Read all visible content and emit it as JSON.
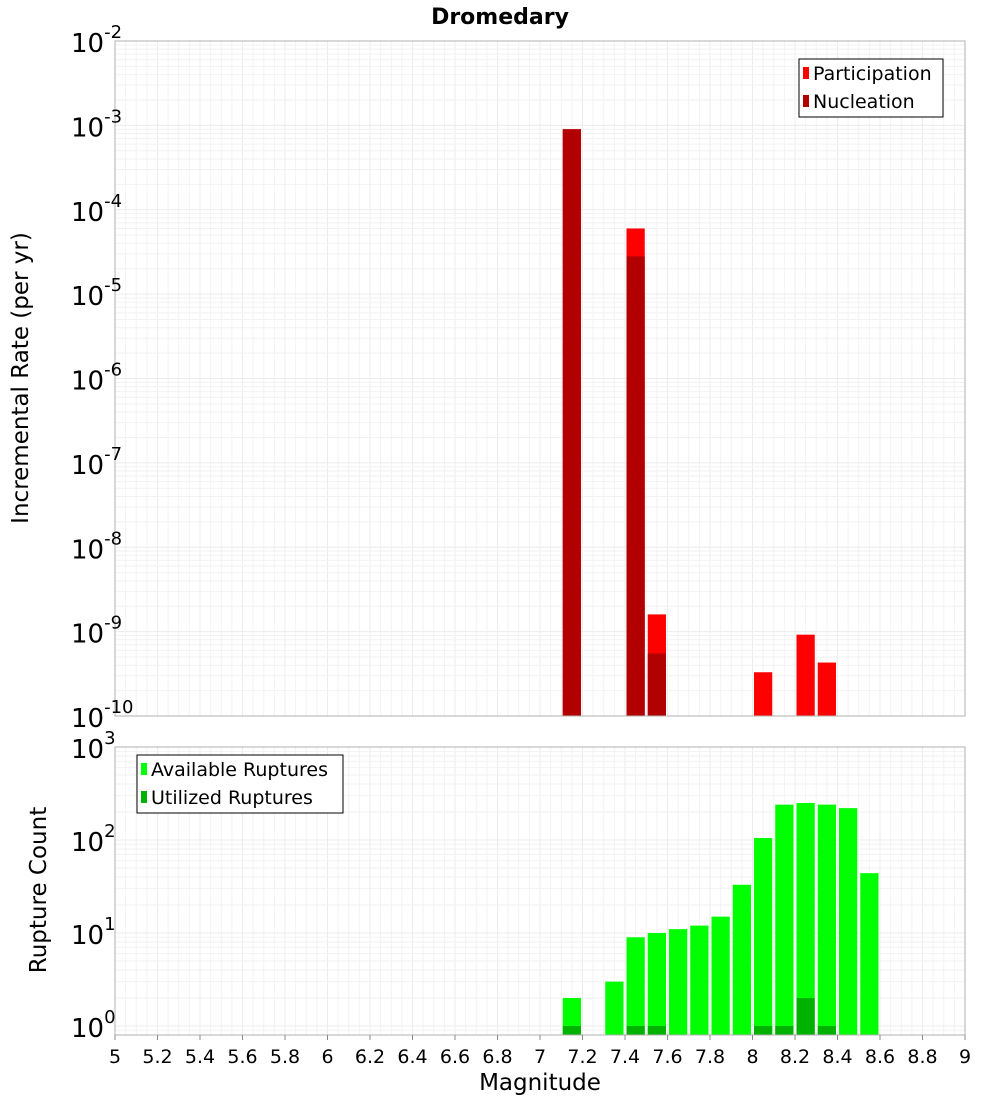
{
  "chart_data": [
    {
      "type": "bar",
      "title": "Dromedary",
      "xlabel": "",
      "ylabel": "Incremental Rate (per yr)",
      "yscale": "log",
      "ylim": [
        1e-10,
        0.01
      ],
      "xlim": [
        5,
        9
      ],
      "grid": true,
      "legend_position": "top-right",
      "bar_width": 0.1,
      "y_ticks": [
        {
          "base": "10",
          "exp": "-10",
          "value": 1e-10
        },
        {
          "base": "10",
          "exp": "-9",
          "value": 1e-09
        },
        {
          "base": "10",
          "exp": "-8",
          "value": 1e-08
        },
        {
          "base": "10",
          "exp": "-7",
          "value": 1e-07
        },
        {
          "base": "10",
          "exp": "-6",
          "value": 1e-06
        },
        {
          "base": "10",
          "exp": "-5",
          "value": 1e-05
        },
        {
          "base": "10",
          "exp": "-4",
          "value": 0.0001
        },
        {
          "base": "10",
          "exp": "-3",
          "value": 0.001
        },
        {
          "base": "10",
          "exp": "-2",
          "value": 0.01
        }
      ],
      "series": [
        {
          "name": "Participation",
          "color": "#ff0000",
          "points": [
            {
              "x": 7.15,
              "y": 0.0009
            },
            {
              "x": 7.45,
              "y": 6e-05
            },
            {
              "x": 7.55,
              "y": 1.6e-09
            },
            {
              "x": 8.05,
              "y": 3.3e-10
            },
            {
              "x": 8.25,
              "y": 9.2e-10
            },
            {
              "x": 8.35,
              "y": 4.3e-10
            }
          ]
        },
        {
          "name": "Nucleation",
          "color": "#b20000",
          "points": [
            {
              "x": 7.15,
              "y": 0.0009
            },
            {
              "x": 7.45,
              "y": 2.8e-05
            },
            {
              "x": 7.55,
              "y": 5.5e-10
            }
          ]
        }
      ]
    },
    {
      "type": "bar",
      "title": "",
      "xlabel": "Magnitude",
      "ylabel": "Rupture Count",
      "yscale": "log",
      "ylim": [
        0.8,
        1000
      ],
      "xlim": [
        5,
        9
      ],
      "grid": true,
      "legend_position": "top-left",
      "bar_width": 0.1,
      "x_ticks": [
        "5",
        "5.2",
        "5.4",
        "5.6",
        "5.8",
        "6",
        "6.2",
        "6.4",
        "6.6",
        "6.8",
        "7",
        "7.2",
        "7.4",
        "7.6",
        "7.8",
        "8",
        "8.2",
        "8.4",
        "8.6",
        "8.8",
        "9"
      ],
      "y_ticks": [
        {
          "base": "10",
          "exp": "0",
          "value": 1
        },
        {
          "base": "10",
          "exp": "1",
          "value": 10
        },
        {
          "base": "10",
          "exp": "2",
          "value": 100
        },
        {
          "base": "10",
          "exp": "3",
          "value": 1000
        }
      ],
      "series": [
        {
          "name": "Available Ruptures",
          "color": "#00ff00",
          "points": [
            {
              "x": 7.15,
              "y": 2
            },
            {
              "x": 7.35,
              "y": 3
            },
            {
              "x": 7.45,
              "y": 9
            },
            {
              "x": 7.55,
              "y": 10
            },
            {
              "x": 7.65,
              "y": 11
            },
            {
              "x": 7.75,
              "y": 12
            },
            {
              "x": 7.85,
              "y": 15
            },
            {
              "x": 7.95,
              "y": 33
            },
            {
              "x": 8.05,
              "y": 105
            },
            {
              "x": 8.15,
              "y": 240
            },
            {
              "x": 8.25,
              "y": 250
            },
            {
              "x": 8.35,
              "y": 240
            },
            {
              "x": 8.45,
              "y": 220
            },
            {
              "x": 8.55,
              "y": 44
            }
          ]
        },
        {
          "name": "Utilized Ruptures",
          "color": "#00b200",
          "points": [
            {
              "x": 7.15,
              "y": 1
            },
            {
              "x": 7.45,
              "y": 1
            },
            {
              "x": 7.55,
              "y": 1
            },
            {
              "x": 8.05,
              "y": 1
            },
            {
              "x": 8.15,
              "y": 1
            },
            {
              "x": 8.25,
              "y": 2
            },
            {
              "x": 8.35,
              "y": 1
            }
          ]
        }
      ]
    }
  ]
}
